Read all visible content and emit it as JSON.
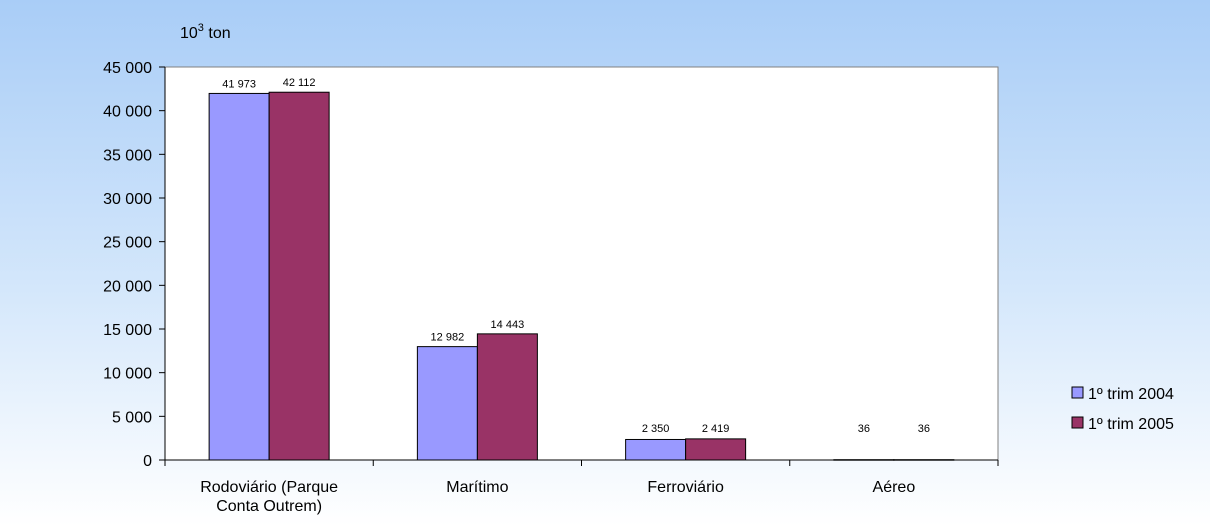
{
  "chart_data": {
    "type": "bar",
    "ylabel_base": "10",
    "ylabel_exp": "3",
    "ylabel_unit": " ton",
    "categories": [
      [
        "Rodoviário (Parque",
        "Conta Outrem)"
      ],
      [
        "Marítimo"
      ],
      [
        "Ferroviário"
      ],
      [
        "Aéreo"
      ]
    ],
    "series": [
      {
        "name": "1º trim 2004",
        "color": "#9999ff",
        "values": [
          41973,
          12982,
          2350,
          36
        ],
        "labels": [
          "41 973",
          "12 982",
          "2 350",
          "36"
        ]
      },
      {
        "name": "1º trim 2005",
        "color": "#993366",
        "values": [
          42112,
          14443,
          2419,
          36
        ],
        "labels": [
          "42 112",
          "14 443",
          "2 419",
          "36"
        ]
      }
    ],
    "ylim": [
      0,
      45000
    ],
    "yticks": [
      0,
      5000,
      10000,
      15000,
      20000,
      25000,
      30000,
      35000,
      40000,
      45000
    ],
    "ytick_labels": [
      "0",
      "5 000",
      "10 000",
      "15 000",
      "20 000",
      "25 000",
      "30 000",
      "35 000",
      "40 000",
      "45 000"
    ],
    "grid": false,
    "legend_position": "right"
  }
}
